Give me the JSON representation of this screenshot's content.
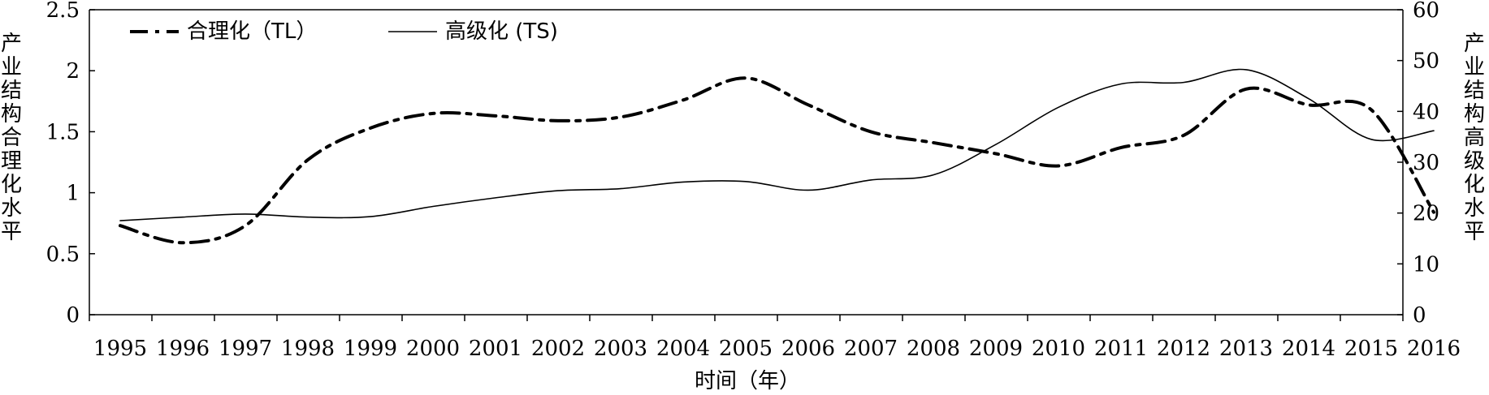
{
  "chart_data": {
    "type": "line",
    "title": "",
    "xlabel": "时间（年）",
    "ylabel_left": "产业结构合理化水平",
    "ylabel_right": "产业结构高级化水平",
    "categories": [
      "1995",
      "1996",
      "1997",
      "1998",
      "1999",
      "2000",
      "2001",
      "2002",
      "2003",
      "2004",
      "2005",
      "2006",
      "2007",
      "2008",
      "2009",
      "2010",
      "2011",
      "2012",
      "2013",
      "2014",
      "2015",
      "2016"
    ],
    "y_left": {
      "min": 0,
      "max": 2.5,
      "ticks": [
        "0",
        "0.5",
        "1",
        "1.5",
        "2",
        "2.5"
      ]
    },
    "y_right": {
      "min": 0,
      "max": 60,
      "ticks": [
        "0",
        "10",
        "20",
        "30",
        "40",
        "50",
        "60"
      ]
    },
    "grid": false,
    "legend_position": "top-left",
    "series": [
      {
        "name": "合理化（TL）",
        "axis": "left",
        "style": "dash-dot",
        "color": "#000000",
        "values": [
          0.73,
          0.59,
          0.73,
          1.27,
          1.53,
          1.65,
          1.63,
          1.59,
          1.62,
          1.76,
          1.94,
          1.72,
          1.5,
          1.41,
          1.32,
          1.22,
          1.37,
          1.47,
          1.85,
          1.72,
          1.68,
          0.84
        ]
      },
      {
        "name": "高级化 (TS)",
        "axis": "right",
        "style": "solid",
        "color": "#000000",
        "values": [
          18.5,
          19.2,
          19.8,
          19.2,
          19.3,
          21.3,
          23.0,
          24.4,
          24.8,
          26.1,
          26.2,
          24.5,
          26.5,
          27.5,
          33.5,
          40.8,
          45.4,
          45.7,
          48.2,
          42.5,
          34.5,
          36.2
        ]
      }
    ]
  }
}
